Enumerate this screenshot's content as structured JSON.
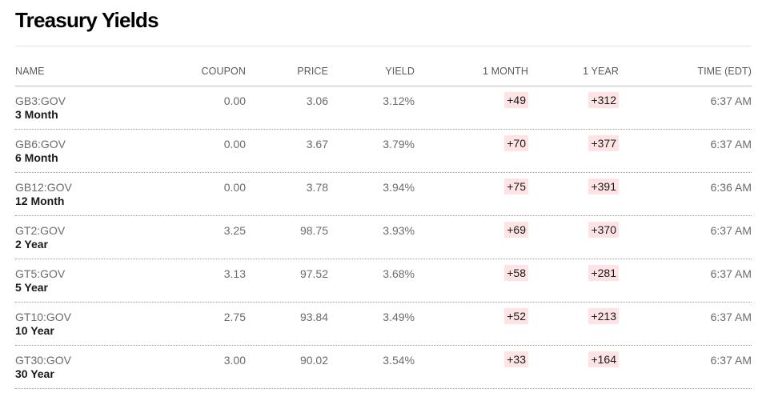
{
  "page": {
    "title": "Treasury Yields"
  },
  "colors": {
    "change_positive_bg": "#fde3e3",
    "header_text": "#5a5a5a",
    "value_text": "#6b6b6b"
  },
  "table": {
    "columns": [
      "NAME",
      "COUPON",
      "PRICE",
      "YIELD",
      "1 MONTH",
      "1 YEAR",
      "TIME (EDT)"
    ],
    "rows": [
      {
        "symbol": "GB3:GOV",
        "name": "3 Month",
        "coupon": "0.00",
        "price": "3.06",
        "yield": "3.12%",
        "month": "+49",
        "year": "+312",
        "time": "6:37 AM"
      },
      {
        "symbol": "GB6:GOV",
        "name": "6 Month",
        "coupon": "0.00",
        "price": "3.67",
        "yield": "3.79%",
        "month": "+70",
        "year": "+377",
        "time": "6:37 AM"
      },
      {
        "symbol": "GB12:GOV",
        "name": "12 Month",
        "coupon": "0.00",
        "price": "3.78",
        "yield": "3.94%",
        "month": "+75",
        "year": "+391",
        "time": "6:36 AM"
      },
      {
        "symbol": "GT2:GOV",
        "name": "2 Year",
        "coupon": "3.25",
        "price": "98.75",
        "yield": "3.93%",
        "month": "+69",
        "year": "+370",
        "time": "6:37 AM"
      },
      {
        "symbol": "GT5:GOV",
        "name": "5 Year",
        "coupon": "3.13",
        "price": "97.52",
        "yield": "3.68%",
        "month": "+58",
        "year": "+281",
        "time": "6:37 AM"
      },
      {
        "symbol": "GT10:GOV",
        "name": "10 Year",
        "coupon": "2.75",
        "price": "93.84",
        "yield": "3.49%",
        "month": "+52",
        "year": "+213",
        "time": "6:37 AM"
      },
      {
        "symbol": "GT30:GOV",
        "name": "30 Year",
        "coupon": "3.00",
        "price": "90.02",
        "yield": "3.54%",
        "month": "+33",
        "year": "+164",
        "time": "6:37 AM"
      }
    ]
  }
}
